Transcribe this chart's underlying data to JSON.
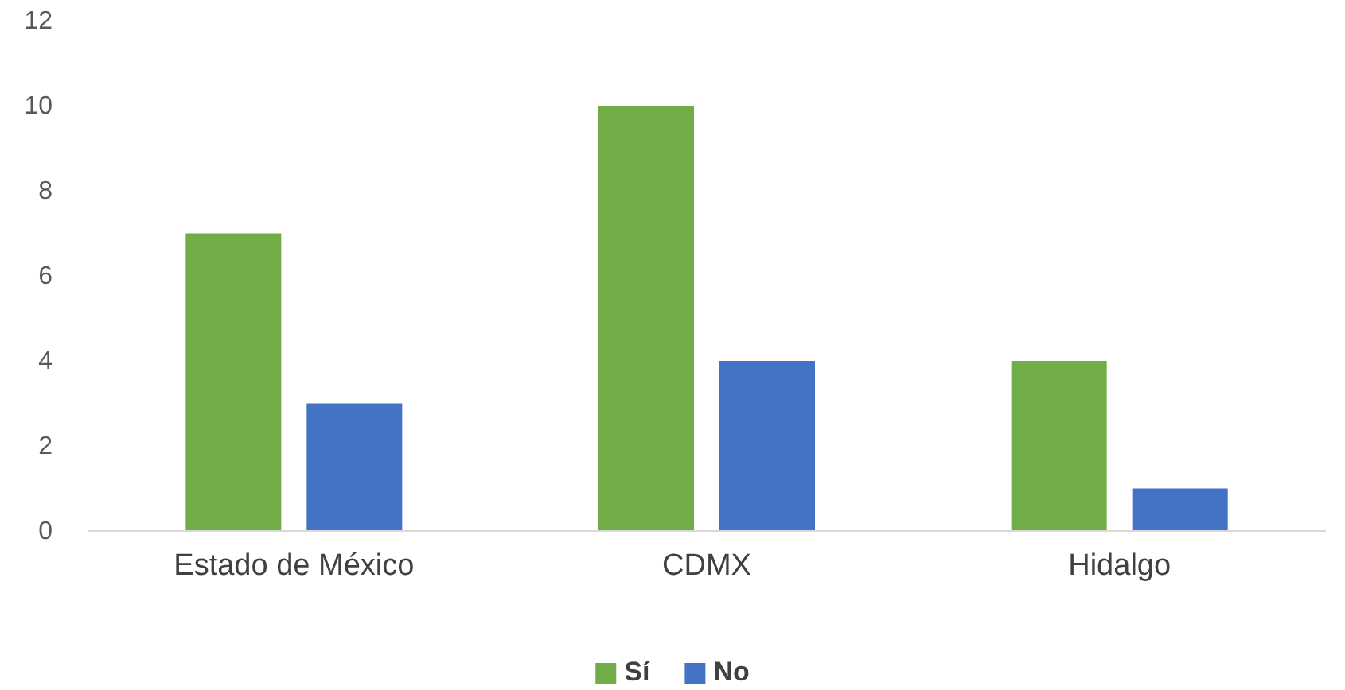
{
  "chart_data": {
    "type": "bar",
    "categories": [
      "Estado de México",
      "CDMX",
      "Hidalgo"
    ],
    "series": [
      {
        "name": "Sí",
        "color": "#70ad47",
        "values": [
          7,
          10,
          4
        ]
      },
      {
        "name": "No",
        "color": "#4472c4",
        "values": [
          3,
          4,
          1
        ]
      }
    ],
    "ylim": [
      0,
      12
    ],
    "yticks": [
      0,
      2,
      4,
      6,
      8,
      10,
      12
    ],
    "grid": false,
    "legend": "bottom"
  }
}
